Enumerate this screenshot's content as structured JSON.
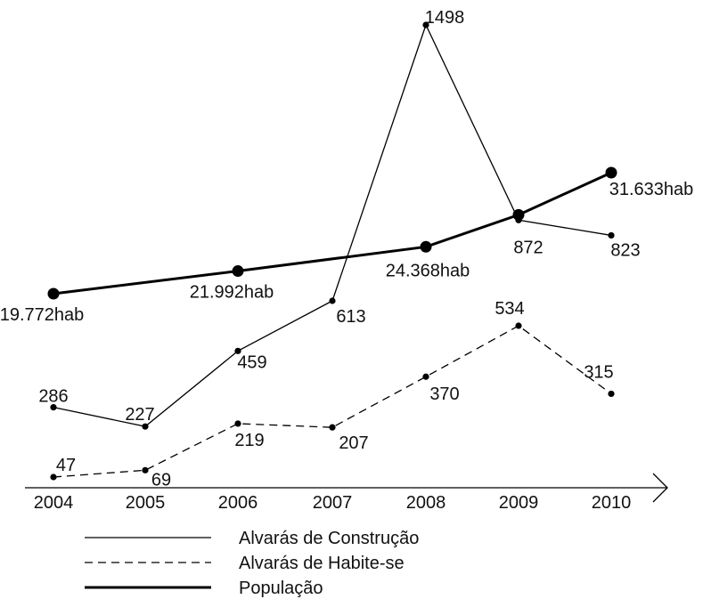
{
  "chart_data": {
    "type": "line",
    "x": [
      "2004",
      "2005",
      "2006",
      "2007",
      "2008",
      "2009",
      "2010"
    ],
    "series": [
      {
        "name": "Alvarás de Construção",
        "style": "solid",
        "values": [
          286,
          227,
          459,
          613,
          1498,
          872,
          823
        ],
        "labels": [
          "286",
          "227",
          "459",
          "613",
          "1498",
          "872",
          "823"
        ]
      },
      {
        "name": "Alvarás de Habite-se",
        "style": "dashed",
        "values": [
          47,
          69,
          219,
          207,
          370,
          534,
          315
        ],
        "labels": [
          "47",
          "69",
          "219",
          "207",
          "370",
          "534",
          "315"
        ]
      },
      {
        "name": "População",
        "style": "thick",
        "x": [
          "2004",
          "2006",
          "2008",
          "2009",
          "2010"
        ],
        "values": [
          19772,
          21992,
          24368,
          27500,
          31633
        ],
        "labels": [
          "19.772hab",
          "21.992hab",
          "24.368hab",
          "",
          "31.633hab"
        ]
      }
    ],
    "legend": "bottom-left",
    "grid": false,
    "colors": {
      "line": "#000000",
      "text": "#111111"
    }
  }
}
